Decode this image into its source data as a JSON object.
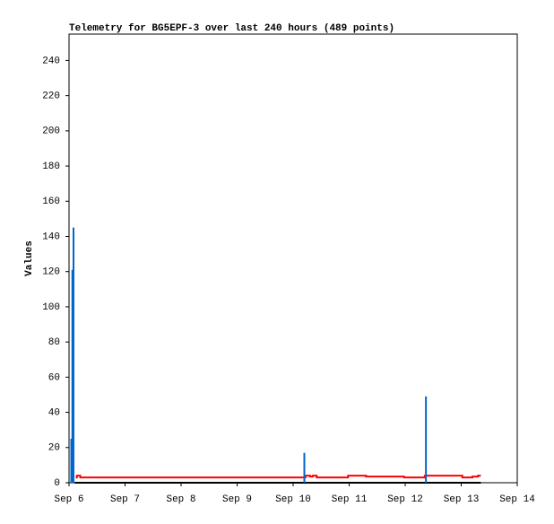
{
  "chart_data": {
    "type": "line",
    "title": "Telemetry for BG5EPF-3 over last 240 hours (489 points)",
    "y_label": "Values",
    "xlim": [
      6,
      14
    ],
    "xticks": [
      {
        "value": 6,
        "label": "Sep 6"
      },
      {
        "value": 7,
        "label": "Sep 7"
      },
      {
        "value": 8,
        "label": "Sep 8"
      },
      {
        "value": 9,
        "label": "Sep 9"
      },
      {
        "value": 10,
        "label": "Sep 10"
      },
      {
        "value": 11,
        "label": "Sep 11"
      },
      {
        "value": 12,
        "label": "Sep 12"
      },
      {
        "value": 13,
        "label": "Sep 13"
      },
      {
        "value": 14,
        "label": "Sep 14"
      }
    ],
    "ylim": [
      0,
      255
    ],
    "yticks": [
      0,
      20,
      40,
      60,
      80,
      100,
      120,
      140,
      160,
      180,
      200,
      220,
      240
    ],
    "series": [
      {
        "color": "#000000",
        "mode": "line",
        "x": [
          6.1,
          13.35
        ],
        "values": [
          0,
          0
        ]
      },
      {
        "color": "#ff0000",
        "mode": "line",
        "x": [
          6.12,
          6.14,
          6.14,
          6.2,
          6.2,
          10.22,
          10.22,
          10.3,
          10.3,
          10.35,
          10.35,
          10.42,
          10.42,
          10.98,
          10.98,
          11.3,
          11.3,
          11.98,
          11.98,
          12.35,
          12.35,
          13.02,
          13.02,
          13.2,
          13.2,
          13.3,
          13.3,
          13.35
        ],
        "values": [
          3,
          3,
          4,
          4,
          3,
          3,
          4,
          4,
          3.5,
          3.5,
          4,
          4,
          3,
          3,
          4,
          4,
          3.5,
          3.5,
          3,
          3,
          4,
          4,
          3,
          3,
          3.5,
          3.5,
          4,
          4
        ]
      },
      {
        "color": "#0066cc",
        "mode": "impulse",
        "x": [
          6.04,
          6.06,
          6.08,
          10.2,
          12.37
        ],
        "values": [
          25,
          121,
          145,
          17,
          49
        ]
      }
    ]
  }
}
